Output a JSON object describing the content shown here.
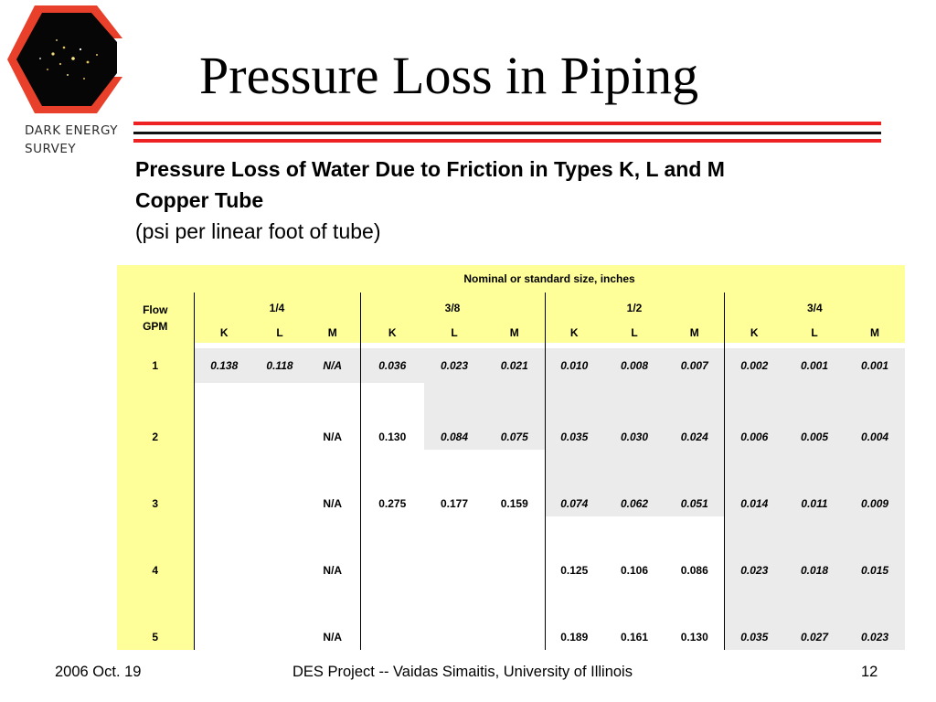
{
  "slide": {
    "title": "Pressure Loss in Piping"
  },
  "logo": {
    "line1": "DARK ENERGY",
    "line2": "SURVEY"
  },
  "subtitle": {
    "line1": "Pressure Loss of Water Due to Friction in Types K, L and M",
    "line2": "Copper Tube",
    "line3": "(psi per linear foot of tube)"
  },
  "table": {
    "header": "Nominal or standard size, inches",
    "flow_label_1": "Flow",
    "flow_label_2": "GPM",
    "sizes": [
      "1/4",
      "3/8",
      "1/2",
      "3/4"
    ],
    "types": [
      "K",
      "L",
      "M"
    ],
    "rows": [
      {
        "gpm": "1",
        "values": [
          "0.138",
          "0.118",
          "N/A",
          "0.036",
          "0.023",
          "0.021",
          "0.010",
          "0.008",
          "0.007",
          "0.002",
          "0.001",
          "0.001"
        ]
      },
      {
        "gpm": "2",
        "values": [
          "",
          "",
          "N/A",
          "0.130",
          "0.084",
          "0.075",
          "0.035",
          "0.030",
          "0.024",
          "0.006",
          "0.005",
          "0.004"
        ]
      },
      {
        "gpm": "3",
        "values": [
          "",
          "",
          "N/A",
          "0.275",
          "0.177",
          "0.159",
          "0.074",
          "0.062",
          "0.051",
          "0.014",
          "0.011",
          "0.009"
        ]
      },
      {
        "gpm": "4",
        "values": [
          "",
          "",
          "N/A",
          "",
          "",
          "",
          "0.125",
          "0.106",
          "0.086",
          "0.023",
          "0.018",
          "0.015"
        ]
      },
      {
        "gpm": "5",
        "values": [
          "",
          "",
          "N/A",
          "",
          "",
          "",
          "0.189",
          "0.161",
          "0.130",
          "0.035",
          "0.027",
          "0.023"
        ]
      }
    ]
  },
  "footer": {
    "date": "2006 Oct. 19",
    "center": "DES Project -- Vaidas Simaitis,  University of Illinois",
    "page": "12"
  },
  "colors": {
    "accent_red": "#ee2222",
    "header_yellow": "#ffff99",
    "cell_gray": "#ebebeb"
  }
}
